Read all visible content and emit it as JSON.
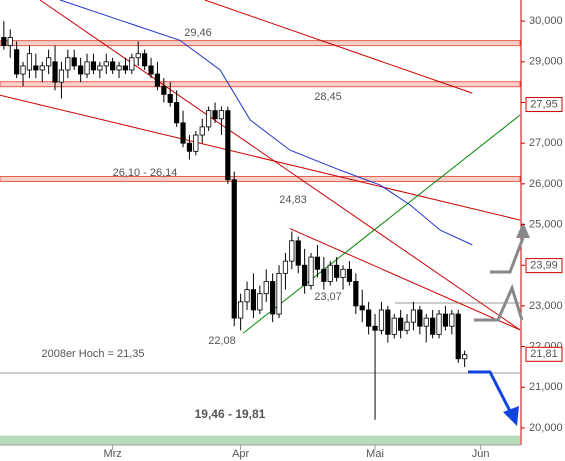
{
  "chart_data": {
    "type": "candlestick",
    "ylim": [
      19.58,
      30.52
    ],
    "xlim": [
      -0.6,
      80.65
    ],
    "yticks": [
      {
        "value": 20,
        "label": "20,000"
      },
      {
        "value": 21,
        "label": "21,000"
      },
      {
        "value": 22,
        "label": "22,000"
      },
      {
        "value": 23,
        "label": "23,000"
      },
      {
        "value": 24,
        "label": "24,000"
      },
      {
        "value": 25,
        "label": "25,000"
      },
      {
        "value": 26,
        "label": "26,000"
      },
      {
        "value": 27,
        "label": "27,000"
      },
      {
        "value": 28,
        "label": "28,000"
      },
      {
        "value": 29,
        "label": "29,000"
      },
      {
        "value": 30,
        "label": "30,000"
      }
    ],
    "xticks": [
      {
        "value": 17,
        "label": "Mrz"
      },
      {
        "value": 37,
        "label": "Apr"
      },
      {
        "value": 58,
        "label": "Mai"
      },
      {
        "value": 74.5,
        "label": "Jun"
      }
    ],
    "open": [
      29.6,
      29.4,
      29.3,
      28.7,
      28.8,
      28.9,
      28.8,
      28.9,
      29.0,
      28.5,
      28.8,
      29.1,
      28.9,
      28.7,
      29.0,
      28.8,
      28.9,
      29.0,
      28.8,
      28.9,
      28.8,
      29.1,
      29.2,
      28.9,
      28.7,
      28.4,
      28.2,
      28.0,
      27.5,
      27.0,
      26.8,
      27.2,
      27.4,
      27.8,
      27.6,
      27.8,
      26.1,
      22.7,
      23.1,
      23.4,
      22.9,
      23.3,
      23.6,
      22.8,
      23.8,
      24.1,
      24.6,
      24.0,
      23.5,
      24.2,
      23.9,
      23.6,
      24.0,
      23.7,
      23.9,
      23.6,
      23.0,
      22.9,
      22.5,
      22.4,
      22.9,
      22.3,
      22.7,
      22.4,
      22.6,
      22.9,
      22.5,
      22.7,
      22.3,
      22.8,
      22.5,
      22.8,
      21.7
    ],
    "high": [
      30.0,
      29.8,
      29.5,
      29.0,
      29.4,
      29.2,
      29.0,
      29.3,
      29.4,
      29.0,
      29.3,
      29.3,
      29.1,
      29.2,
      29.2,
      29.0,
      29.2,
      29.1,
      29.0,
      29.1,
      29.2,
      29.5,
      29.3,
      29.1,
      29.0,
      28.6,
      28.5,
      28.3,
      27.8,
      27.2,
      27.3,
      27.6,
      27.9,
      28.0,
      27.9,
      27.9,
      26.3,
      23.3,
      23.6,
      23.8,
      23.5,
      23.9,
      23.8,
      24.0,
      24.3,
      24.83,
      24.7,
      24.4,
      24.3,
      24.5,
      24.2,
      24.1,
      24.2,
      24.0,
      24.1,
      23.8,
      23.4,
      23.1,
      22.8,
      23.1,
      23.0,
      22.8,
      22.9,
      22.8,
      23.1,
      23.0,
      22.8,
      22.9,
      22.9,
      23.0,
      22.9,
      22.9,
      21.9
    ],
    "low": [
      29.3,
      29.1,
      28.6,
      28.4,
      28.6,
      28.6,
      28.5,
      28.7,
      28.3,
      28.1,
      28.6,
      28.8,
      28.5,
      28.6,
      28.7,
      28.6,
      28.7,
      28.7,
      28.6,
      28.7,
      28.7,
      28.9,
      28.8,
      28.6,
      28.3,
      28.0,
      27.9,
      27.4,
      26.9,
      26.6,
      26.7,
      27.0,
      27.3,
      27.5,
      27.2,
      26.0,
      22.5,
      22.4,
      22.9,
      22.7,
      22.8,
      23.1,
      22.6,
      22.7,
      23.4,
      23.9,
      23.8,
      23.3,
      23.4,
      23.7,
      23.4,
      23.5,
      23.6,
      23.4,
      23.5,
      22.8,
      22.6,
      22.3,
      20.2,
      22.3,
      22.1,
      22.2,
      22.2,
      22.3,
      22.4,
      22.3,
      22.1,
      22.2,
      22.2,
      22.4,
      22.3,
      21.6,
      21.5
    ],
    "close": [
      29.4,
      29.6,
      28.7,
      28.9,
      29.2,
      28.8,
      28.9,
      29.1,
      28.5,
      28.8,
      29.1,
      28.9,
      28.7,
      29.0,
      28.8,
      28.9,
      29.0,
      28.8,
      28.9,
      28.8,
      29.1,
      29.2,
      28.9,
      28.7,
      28.4,
      28.2,
      28.0,
      27.5,
      27.0,
      26.8,
      27.2,
      27.4,
      27.8,
      27.6,
      27.8,
      26.1,
      22.7,
      23.1,
      23.4,
      22.9,
      23.3,
      23.6,
      22.8,
      23.8,
      24.1,
      24.6,
      24.0,
      23.5,
      24.2,
      23.9,
      23.6,
      24.0,
      23.7,
      23.9,
      23.6,
      23.0,
      22.9,
      22.5,
      22.4,
      22.9,
      22.3,
      22.7,
      22.4,
      22.6,
      22.9,
      22.5,
      22.7,
      22.3,
      22.8,
      22.5,
      22.8,
      21.7,
      21.8
    ],
    "moving_average": {
      "color": "#2233cc",
      "x": [
        8.8,
        18.2,
        27.5,
        33.8,
        38.5,
        44.7,
        52.5,
        58.8,
        63.5,
        68.2,
        73.2
      ],
      "values": [
        30.52,
        30.02,
        29.53,
        28.8,
        27.57,
        26.83,
        26.34,
        25.97,
        25.48,
        24.86,
        24.5
      ]
    },
    "trendlines": [
      {
        "color": "#cc0000",
        "x": [
          31.4,
          73.2
        ],
        "values": [
          30.52,
          28.23
        ]
      },
      {
        "color": "#cc0000",
        "x": [
          5.65,
          80.65
        ],
        "values": [
          30.52,
          22.41
        ]
      },
      {
        "color": "#cc0000",
        "x": [
          -0.6,
          80.65
        ],
        "values": [
          28.18,
          25.11
        ]
      },
      {
        "color": "#cc0000",
        "x": [
          44.7,
          80.65
        ],
        "values": [
          24.9,
          22.41
        ]
      },
      {
        "color": "#008800",
        "x": [
          37.4,
          80.65
        ],
        "values": [
          22.33,
          27.69
        ]
      }
    ],
    "bands": [
      {
        "label": "29,46",
        "low": 29.4,
        "high": 29.52
      },
      {
        "label": "28,45",
        "low": 28.39,
        "high": 28.51
      },
      {
        "label": "26,10 - 26,14",
        "low": 26.1,
        "high": 26.14
      }
    ],
    "levels": [
      {
        "label": "2008er Hoch  = 21,35",
        "value": 21.35
      },
      {
        "label": "23,07",
        "value": 23.07
      }
    ],
    "support_zone": {
      "label": "19,46 - 19,81",
      "low": 19.46,
      "high": 19.81
    },
    "annotations": [
      {
        "label": "24,83",
        "value": 24.83
      },
      {
        "label": "22,08",
        "value": 22.08
      }
    ],
    "price_tags": [
      {
        "value": 27.95,
        "label": "27,95"
      },
      {
        "value": 23.99,
        "label": "23,99"
      },
      {
        "value": 21.81,
        "label": "21,81"
      }
    ]
  }
}
